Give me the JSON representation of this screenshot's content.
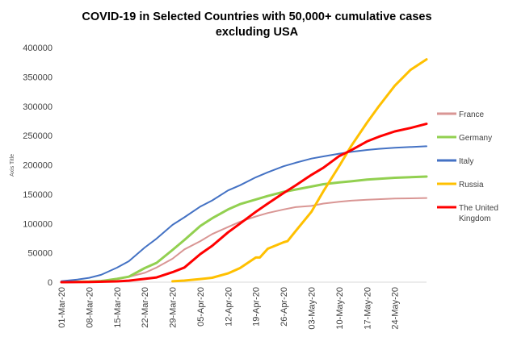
{
  "chart_data": {
    "type": "line",
    "title_lines": [
      "COVID-19 in Selected Countries with 50,000+ cumulative cases",
      "excluding USA"
    ],
    "ylabel": "Axis Title",
    "xlabel": "",
    "ylim": [
      0,
      400000
    ],
    "ytick_values": [
      0,
      50000,
      100000,
      150000,
      200000,
      250000,
      300000,
      350000,
      400000
    ],
    "ytick_labels": [
      "0",
      "50000",
      "100000",
      "150000",
      "200000",
      "250000",
      "300000",
      "350000",
      "400000"
    ],
    "grid": false,
    "x_range_days": [
      0,
      92
    ],
    "xticks": [
      {
        "day": 0,
        "label": "01-Mar-20"
      },
      {
        "day": 7,
        "label": "08-Mar-20"
      },
      {
        "day": 14,
        "label": "15-Mar-20"
      },
      {
        "day": 21,
        "label": "22-Mar-20"
      },
      {
        "day": 28,
        "label": "29-Mar-20"
      },
      {
        "day": 35,
        "label": "05-Apr-20"
      },
      {
        "day": 42,
        "label": "12-Apr-20"
      },
      {
        "day": 49,
        "label": "19-Apr-20"
      },
      {
        "day": 56,
        "label": "26-Apr-20"
      },
      {
        "day": 63,
        "label": "03-May-20"
      },
      {
        "day": 70,
        "label": "10-May-20"
      },
      {
        "day": 77,
        "label": "17-May-20"
      },
      {
        "day": 84,
        "label": "24-May-20"
      }
    ],
    "legend_position": "right",
    "series": [
      {
        "name": "France",
        "color": "#d99694",
        "stroke": 2,
        "points": [
          [
            0,
            130
          ],
          [
            7,
            1100
          ],
          [
            10,
            2300
          ],
          [
            14,
            5400
          ],
          [
            17,
            9100
          ],
          [
            21,
            16000
          ],
          [
            24,
            25000
          ],
          [
            28,
            40000
          ],
          [
            31,
            56000
          ],
          [
            35,
            70000
          ],
          [
            38,
            82000
          ],
          [
            42,
            94000
          ],
          [
            45,
            103000
          ],
          [
            49,
            112000
          ],
          [
            52,
            118000
          ],
          [
            56,
            124000
          ],
          [
            59,
            128000
          ],
          [
            63,
            130000
          ],
          [
            66,
            134000
          ],
          [
            70,
            137000
          ],
          [
            73,
            139000
          ],
          [
            77,
            140500
          ],
          [
            84,
            142500
          ],
          [
            92,
            143500
          ]
        ]
      },
      {
        "name": "Germany",
        "color": "#92d050",
        "stroke": 3,
        "points": [
          [
            0,
            130
          ],
          [
            7,
            900
          ],
          [
            10,
            1900
          ],
          [
            14,
            5800
          ],
          [
            17,
            9300
          ],
          [
            21,
            24000
          ],
          [
            24,
            33000
          ],
          [
            28,
            55000
          ],
          [
            31,
            72000
          ],
          [
            35,
            96000
          ],
          [
            38,
            109000
          ],
          [
            42,
            124000
          ],
          [
            45,
            133000
          ],
          [
            49,
            141000
          ],
          [
            52,
            147000
          ],
          [
            56,
            154000
          ],
          [
            59,
            158000
          ],
          [
            63,
            163000
          ],
          [
            66,
            167000
          ],
          [
            70,
            170000
          ],
          [
            73,
            172000
          ],
          [
            77,
            175000
          ],
          [
            84,
            178000
          ],
          [
            92,
            180000
          ]
        ]
      },
      {
        "name": "Italy",
        "color": "#4472c4",
        "stroke": 2,
        "points": [
          [
            0,
            1700
          ],
          [
            4,
            4600
          ],
          [
            7,
            7400
          ],
          [
            10,
            12500
          ],
          [
            14,
            24700
          ],
          [
            17,
            35700
          ],
          [
            21,
            59100
          ],
          [
            24,
            74400
          ],
          [
            28,
            97700
          ],
          [
            31,
            110600
          ],
          [
            35,
            128900
          ],
          [
            38,
            139400
          ],
          [
            42,
            156400
          ],
          [
            45,
            165200
          ],
          [
            49,
            178900
          ],
          [
            52,
            187300
          ],
          [
            56,
            197700
          ],
          [
            59,
            203600
          ],
          [
            63,
            210700
          ],
          [
            66,
            214500
          ],
          [
            70,
            219100
          ],
          [
            73,
            222100
          ],
          [
            77,
            225400
          ],
          [
            80,
            227400
          ],
          [
            84,
            229300
          ],
          [
            92,
            231700
          ]
        ]
      },
      {
        "name": "Russia",
        "color": "#ffc000",
        "stroke": 3,
        "points": [
          [
            28,
            1500
          ],
          [
            31,
            2800
          ],
          [
            35,
            5400
          ],
          [
            38,
            7500
          ],
          [
            42,
            15000
          ],
          [
            45,
            24000
          ],
          [
            49,
            42000
          ],
          [
            50,
            42000
          ],
          [
            52,
            57000
          ],
          [
            56,
            68000
          ],
          [
            57,
            70000
          ],
          [
            59,
            87000
          ],
          [
            63,
            120000
          ],
          [
            66,
            155000
          ],
          [
            70,
            198000
          ],
          [
            73,
            232000
          ],
          [
            77,
            272000
          ],
          [
            80,
            300000
          ],
          [
            84,
            335000
          ],
          [
            88,
            362000
          ],
          [
            92,
            380000
          ]
        ]
      },
      {
        "name": "The United Kingdom",
        "color": "#ff0000",
        "stroke": 3,
        "points": [
          [
            0,
            40
          ],
          [
            7,
            270
          ],
          [
            14,
            1400
          ],
          [
            17,
            2600
          ],
          [
            21,
            5700
          ],
          [
            24,
            8100
          ],
          [
            28,
            17000
          ],
          [
            31,
            25000
          ],
          [
            35,
            48000
          ],
          [
            38,
            62000
          ],
          [
            42,
            85000
          ],
          [
            45,
            100000
          ],
          [
            49,
            120000
          ],
          [
            52,
            134000
          ],
          [
            56,
            152000
          ],
          [
            59,
            165000
          ],
          [
            63,
            183000
          ],
          [
            66,
            195000
          ],
          [
            70,
            215000
          ],
          [
            73,
            225000
          ],
          [
            77,
            240000
          ],
          [
            80,
            248000
          ],
          [
            84,
            257000
          ],
          [
            88,
            263000
          ],
          [
            92,
            270000
          ]
        ]
      }
    ],
    "legend": [
      {
        "label_lines": [
          "France"
        ],
        "color": "#d99694"
      },
      {
        "label_lines": [
          "Germany"
        ],
        "color": "#92d050"
      },
      {
        "label_lines": [
          "Italy"
        ],
        "color": "#4472c4"
      },
      {
        "label_lines": [
          "Russia"
        ],
        "color": "#ffc000"
      },
      {
        "label_lines": [
          "The United",
          "Kingdom"
        ],
        "color": "#ff0000"
      }
    ]
  }
}
